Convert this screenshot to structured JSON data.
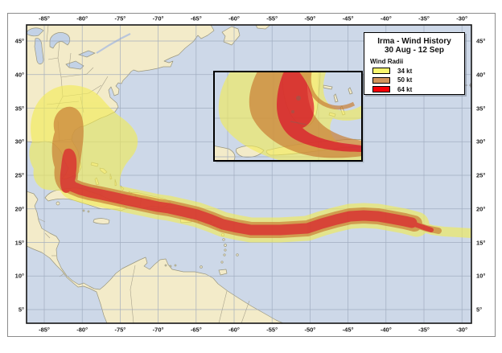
{
  "legend": {
    "title": "Irma - Wind History",
    "subtitle": "30 Aug - 12 Sep",
    "section": "Wind Radii",
    "items": [
      {
        "label": "34 kt",
        "color": "#f8f76e"
      },
      {
        "label": "50 kt",
        "color": "#d2955c"
      },
      {
        "label": "64 kt",
        "color": "#f90006"
      }
    ]
  },
  "axes": {
    "top": [
      "-85°",
      "-80°",
      "-75°",
      "-70°",
      "-65°",
      "-60°",
      "-55°",
      "-50°",
      "-45°",
      "-40°",
      "-35°",
      "-30°"
    ],
    "bottom": [
      "-85°",
      "-80°",
      "-75°",
      "-70°",
      "-65°",
      "-60°",
      "-55°",
      "-50°",
      "-45°",
      "-40°",
      "-35°",
      "-30°"
    ],
    "left": [
      "45°",
      "40°",
      "35°",
      "30°",
      "25°",
      "20°",
      "15°",
      "10°",
      "5°"
    ],
    "right": [
      "45°",
      "40°",
      "35°",
      "30°",
      "25°",
      "20°",
      "15°",
      "10°",
      "5°"
    ]
  },
  "map": {
    "ocean_color": "#cdd8e8",
    "land_color": "#f3ebc9",
    "wind_34kt_color": "#f2ec55",
    "wind_50kt_color": "#c97f35",
    "wind_64kt_color": "#dc0a28",
    "features": [
      "US east coast",
      "Great Lakes",
      "Gulf of Mexico",
      "Florida",
      "Cuba",
      "Hispaniola",
      "Puerto Rico",
      "Bahamas",
      "Lesser Antilles",
      "Central America",
      "South America north coast"
    ],
    "inset_description": "Florida and Cuba close-up of wind swath"
  }
}
